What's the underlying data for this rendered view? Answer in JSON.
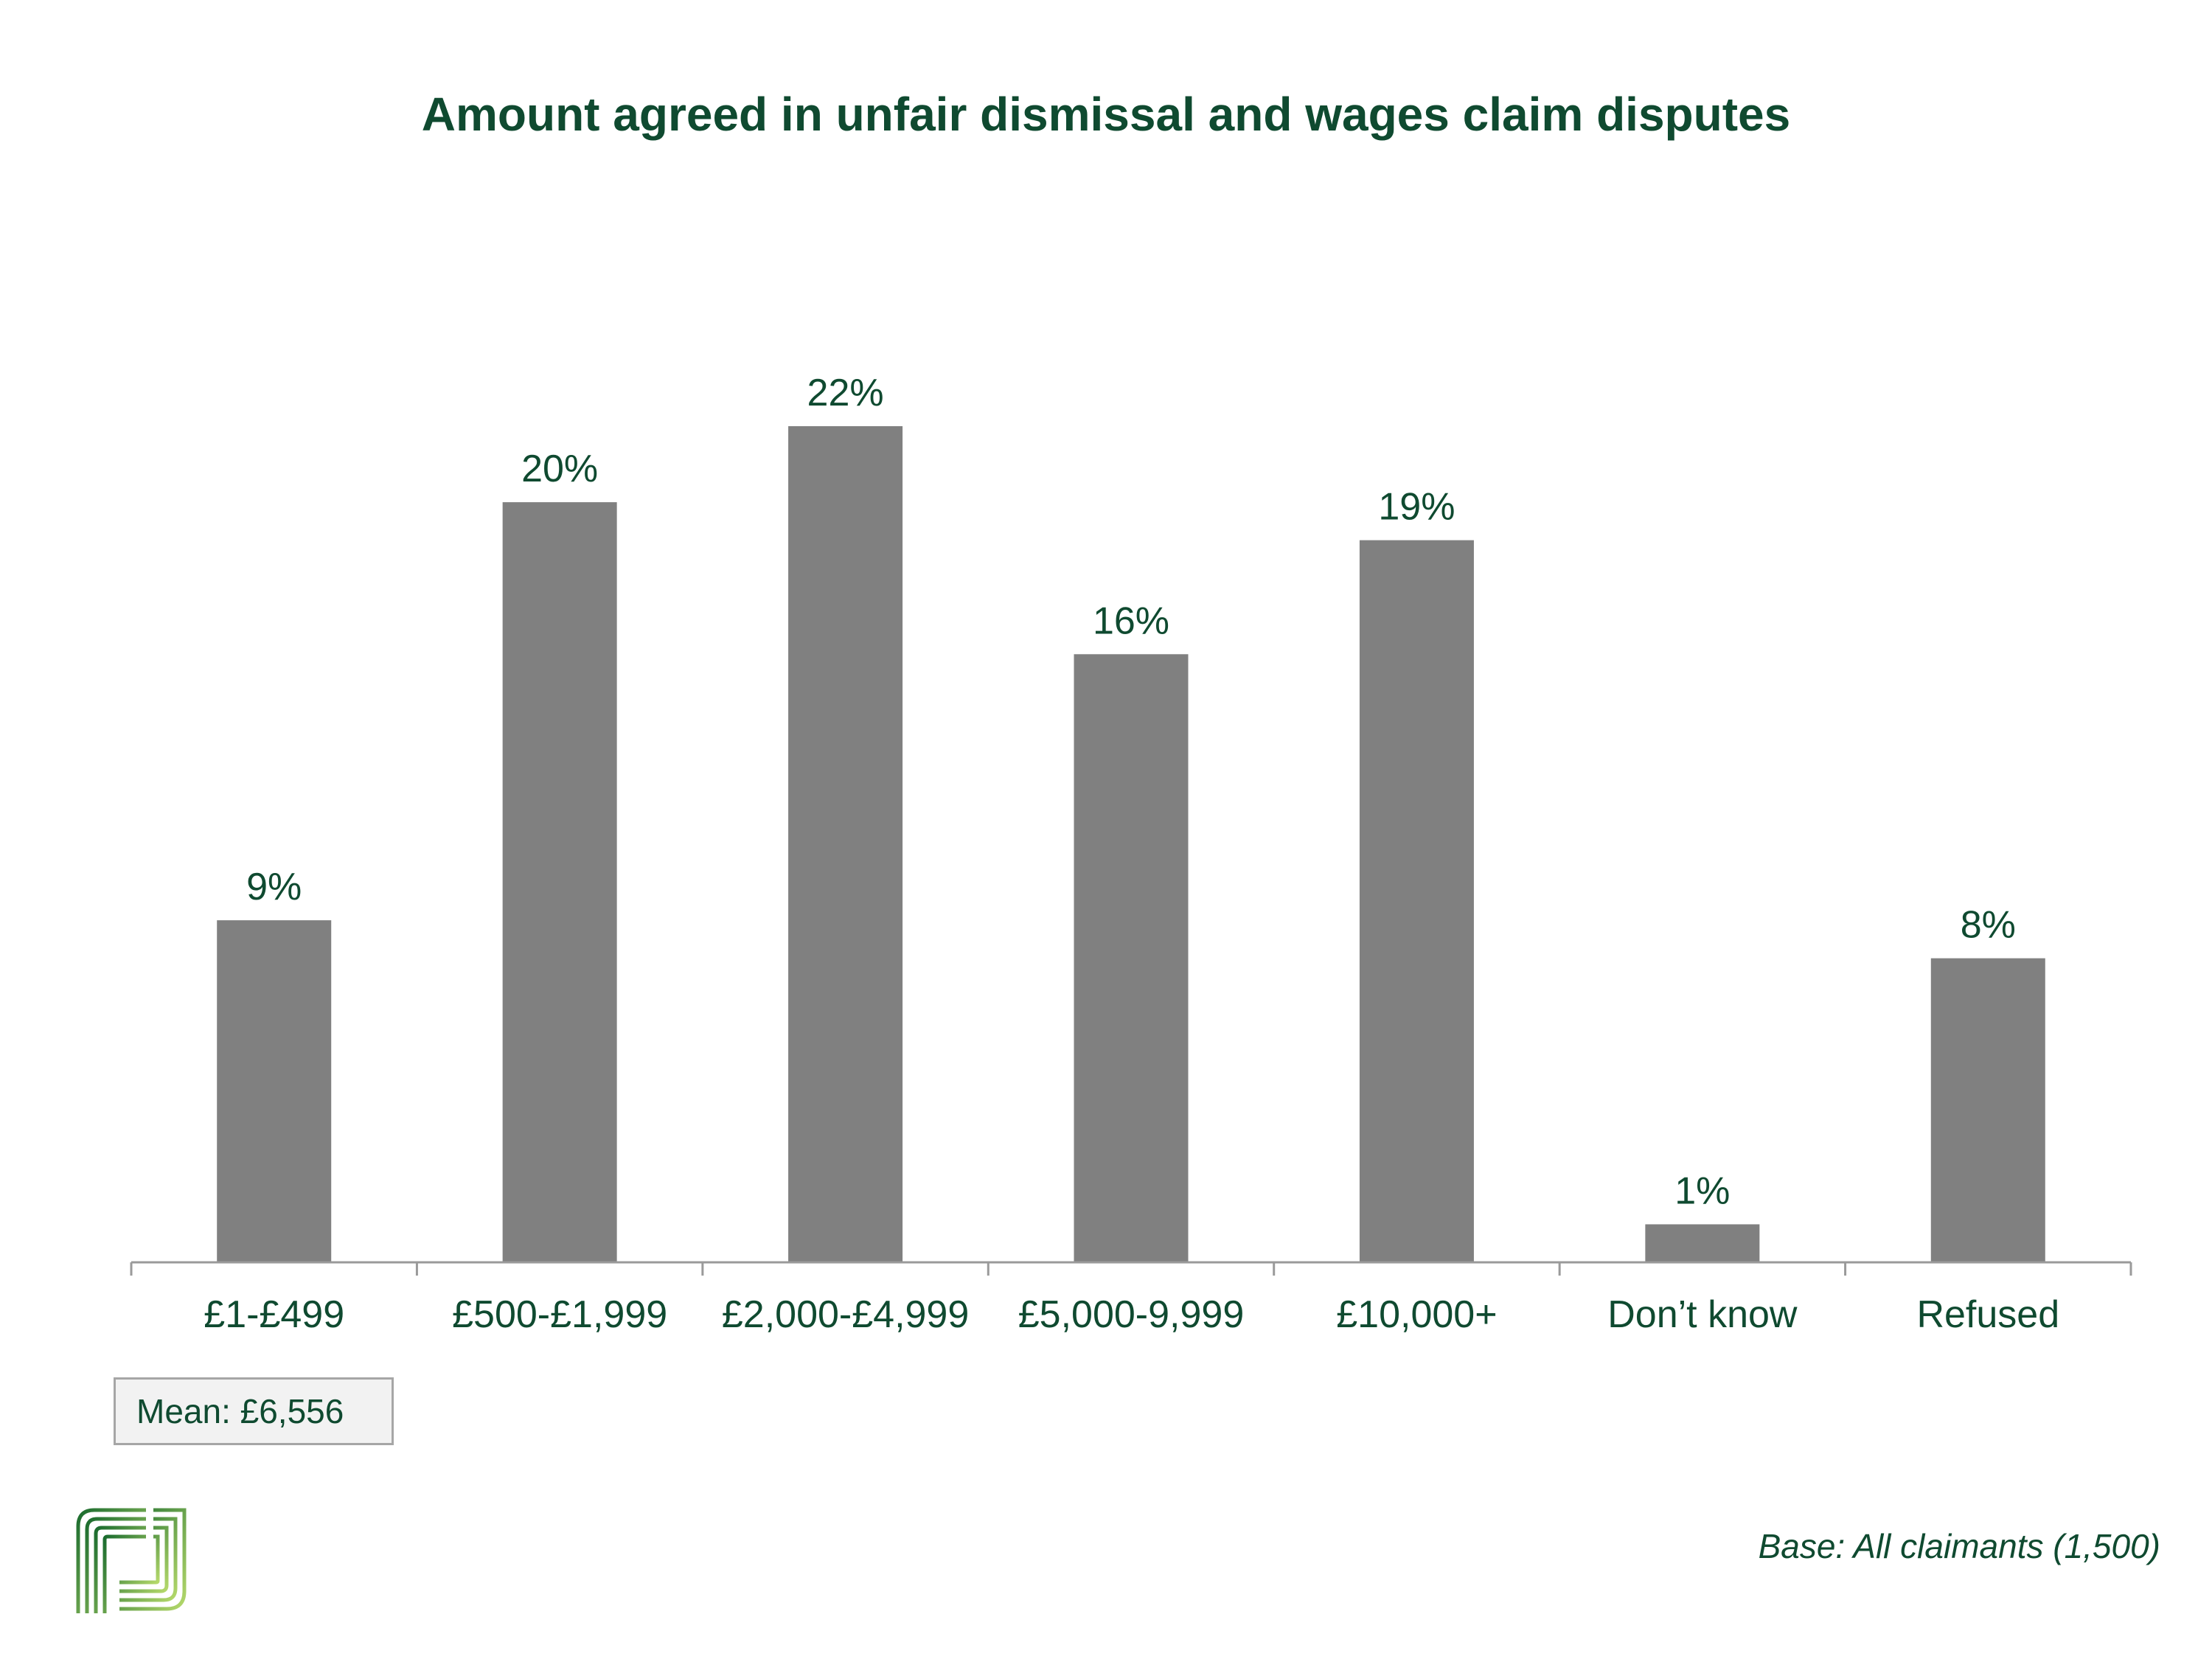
{
  "chart_data": {
    "type": "bar",
    "title": "Amount agreed in unfair dismissal and wages claim disputes",
    "categories": [
      "£1-£499",
      "£500-£1,999",
      "£2,000-£4,999",
      "£5,000-9,999",
      "£10,000+",
      "Don’t know",
      "Refused"
    ],
    "values": [
      9,
      20,
      22,
      16,
      19,
      1,
      8
    ],
    "value_labels": [
      "9%",
      "20%",
      "22%",
      "16%",
      "19%",
      "1%",
      "8%"
    ],
    "unit": "%",
    "ylim": [
      0,
      22
    ],
    "grid": false,
    "bar_color": "#808080",
    "text_color": "#0f4a30"
  },
  "annotations": {
    "mean": "Mean: £6,556",
    "base": "Base: All claimants (1,500)"
  },
  "logo": {
    "icon": "company-logo-icon",
    "colors": [
      "#1a6b2e",
      "#8cc63f"
    ]
  }
}
